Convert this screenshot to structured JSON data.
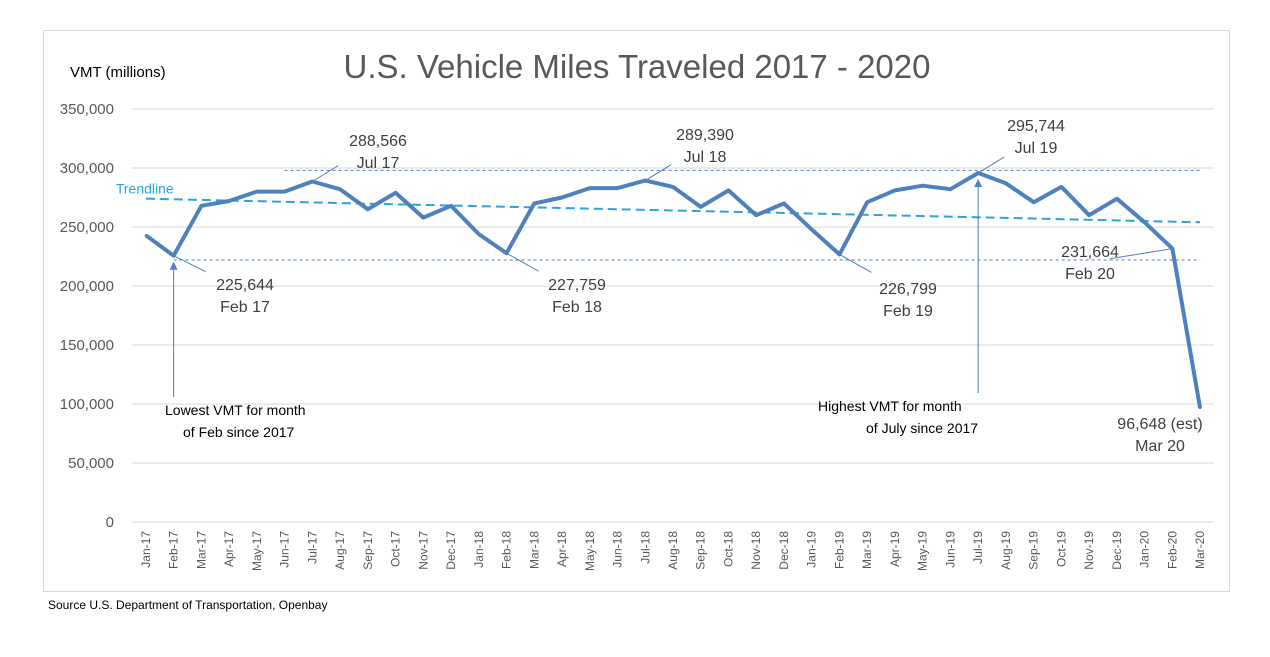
{
  "chart_data": {
    "type": "line",
    "title": "U.S. Vehicle Miles Traveled 2017 - 2020",
    "ylabel": "VMT (millions)",
    "xlabel": "",
    "ylim": [
      0,
      350000
    ],
    "yticks": [
      0,
      50000,
      100000,
      150000,
      200000,
      250000,
      300000,
      350000
    ],
    "ytick_labels": [
      "0",
      "50,000",
      "100,000",
      "150,000",
      "200,000",
      "250,000",
      "300,000",
      "350,000"
    ],
    "grid": true,
    "categories": [
      "Jan-17",
      "Feb-17",
      "Mar-17",
      "Apr-17",
      "May-17",
      "Jun-17",
      "Jul-17",
      "Aug-17",
      "Sep-17",
      "Oct-17",
      "Nov-17",
      "Dec-17",
      "Jan-18",
      "Feb-18",
      "Mar-18",
      "Apr-18",
      "May-18",
      "Jun-18",
      "Jul-18",
      "Aug-18",
      "Sep-18",
      "Oct-18",
      "Nov-18",
      "Dec-18",
      "Jan-19",
      "Feb-19",
      "Mar-19",
      "Apr-19",
      "May-19",
      "Jun-19",
      "Jul-19",
      "Aug-19",
      "Sep-19",
      "Oct-19",
      "Nov-19",
      "Dec-19",
      "Jan-20",
      "Feb-20",
      "Mar-20"
    ],
    "series": [
      {
        "values": [
          243000,
          225644,
          268000,
          272000,
          280000,
          280000,
          288566,
          282000,
          265000,
          279000,
          258000,
          268000,
          244000,
          227759,
          270000,
          275000,
          283000,
          283000,
          289390,
          284000,
          267000,
          281000,
          260000,
          270000,
          248000,
          226799,
          271000,
          281000,
          285000,
          282000,
          295744,
          287000,
          271000,
          284000,
          260000,
          274000,
          254000,
          231664,
          96648
        ],
        "color": "#4e81bd"
      }
    ],
    "trendline": {
      "label": "Trendline",
      "start": 274000,
      "end": 254000,
      "color": "#2ea3dd"
    },
    "reference_lines": [
      {
        "value": 298000,
        "from": "Jun-17",
        "to": "Mar-20"
      },
      {
        "value": 222000,
        "from": "Feb-17",
        "to": "Mar-20"
      }
    ],
    "annotations": [
      {
        "category": "Feb-17",
        "value_text": "225,644",
        "date_text": "Feb 17"
      },
      {
        "category": "Jul-17",
        "value_text": "288,566",
        "date_text": "Jul 17"
      },
      {
        "category": "Feb-18",
        "value_text": "227,759",
        "date_text": "Feb 18"
      },
      {
        "category": "Jul-18",
        "value_text": "289,390",
        "date_text": "Jul 18"
      },
      {
        "category": "Feb-19",
        "value_text": "226,799",
        "date_text": "Feb 19"
      },
      {
        "category": "Jul-19",
        "value_text": "295,744",
        "date_text": "Jul 19"
      },
      {
        "category": "Feb-20",
        "value_text": "231,664",
        "date_text": "Feb 20"
      },
      {
        "category": "Mar-20",
        "value_text": "96,648 (est)",
        "date_text": "Mar 20"
      }
    ],
    "notes": [
      {
        "category": "Feb-17",
        "lines": [
          "Lowest VMT for  month",
          "of Feb since 2017"
        ]
      },
      {
        "category": "Jul-19",
        "lines": [
          "Highest VMT for  month",
          "of July since 2017"
        ]
      }
    ]
  },
  "source": "Source U.S. Department of Transportation, Openbay"
}
